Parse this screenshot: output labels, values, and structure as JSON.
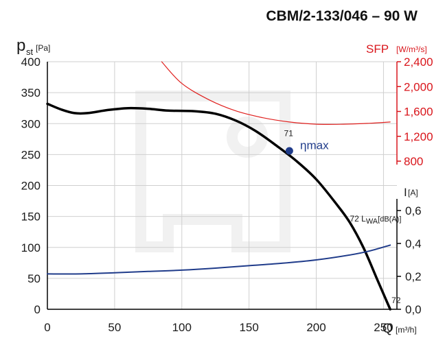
{
  "title": "CBM/2-133/046 – 90 W",
  "chart_data": {
    "type": "line",
    "x_axis": {
      "label": "Q",
      "unit": "[m³/h]",
      "range": [
        0,
        260
      ],
      "ticks": [
        0,
        50,
        100,
        150,
        200,
        250
      ]
    },
    "y_axes": {
      "pressure": {
        "label": "p",
        "subscript": "st",
        "unit": "[Pa]",
        "range": [
          0,
          400
        ],
        "ticks": [
          0,
          50,
          100,
          150,
          200,
          250,
          300,
          350,
          400
        ]
      },
      "sfp": {
        "label": "SFP",
        "unit": "[W/m³/s]",
        "range": [
          800,
          2400
        ],
        "ticks": [
          "800",
          "1,200",
          "1,600",
          "2,000",
          "2,400"
        ],
        "color": "#d9151b"
      },
      "current": {
        "label": "I",
        "unit": "[A]",
        "range": [
          0,
          0.7
        ],
        "ticks": [
          "0,0",
          "0,2",
          "0,4",
          "0,6"
        ]
      }
    },
    "series": [
      {
        "key": "pressure",
        "axis": "pressure",
        "color": "#000000",
        "x": [
          0,
          10,
          20,
          30,
          45,
          60,
          75,
          90,
          110,
          125,
          140,
          155,
          170,
          185,
          200,
          215,
          225,
          235,
          245,
          252,
          255
        ],
        "y": [
          332,
          323,
          317,
          317,
          322,
          325,
          324,
          321,
          320,
          316,
          305,
          288,
          265,
          240,
          210,
          170,
          140,
          100,
          50,
          15,
          0
        ]
      },
      {
        "key": "sfp",
        "axis": "sfp",
        "color": "#e0201e",
        "x": [
          85,
          100,
          120,
          140,
          160,
          180,
          200,
          220,
          240,
          255
        ],
        "y": [
          2400,
          2050,
          1790,
          1610,
          1500,
          1430,
          1395,
          1395,
          1410,
          1430
        ]
      },
      {
        "key": "current",
        "axis": "current",
        "color": "#1f3b8a",
        "x": [
          0,
          25,
          50,
          75,
          100,
          125,
          150,
          175,
          200,
          225,
          240,
          255
        ],
        "y": [
          0.215,
          0.215,
          0.222,
          0.23,
          0.238,
          0.25,
          0.265,
          0.28,
          0.3,
          0.33,
          0.355,
          0.39
        ]
      }
    ],
    "annotations": [
      {
        "text": "71",
        "x": 176,
        "y": 280
      },
      {
        "text": "ηmax",
        "x": 188,
        "y": 264,
        "point": {
          "x": 180,
          "y": 256
        },
        "color": "#1f3b8a"
      },
      {
        "text": "72 L",
        "sub": "WA",
        "suffix": "[dB(A)]",
        "x": 225,
        "y": 142
      },
      {
        "text": "72",
        "x": 256,
        "y": 10
      }
    ],
    "grid": true
  }
}
